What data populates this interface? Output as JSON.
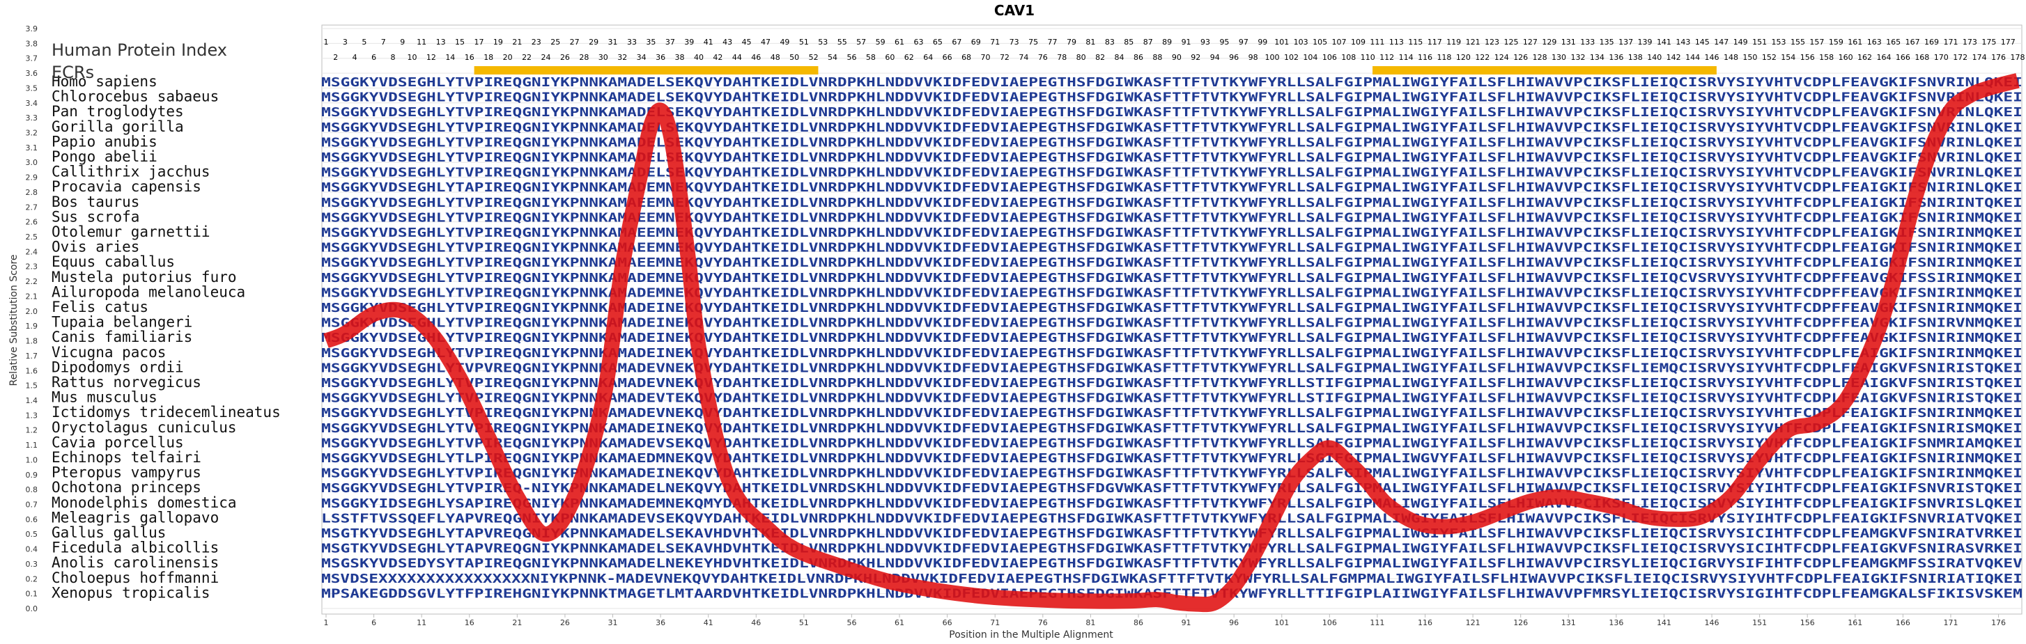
{
  "chart_data": {
    "type": "line",
    "title": "CAV1",
    "xlabel": "Position in the Multiple Alignment",
    "ylabel": "Relative Substitution Score",
    "ylim": [
      0.0,
      3.9
    ],
    "yticks": [
      "0.0",
      "0.1",
      "0.2",
      "0.3",
      "0.4",
      "0.5",
      "0.6",
      "0.7",
      "0.8",
      "0.9",
      "1.0",
      "1.1",
      "1.2",
      "1.3",
      "1.4",
      "1.5",
      "1.6",
      "1.7",
      "1.8",
      "1.9",
      "2.0",
      "2.1",
      "2.2",
      "2.3",
      "2.4",
      "2.5",
      "2.6",
      "2.7",
      "2.8",
      "2.9",
      "3.0",
      "3.1",
      "3.2",
      "3.3",
      "3.4",
      "3.5",
      "3.6",
      "3.7",
      "3.8",
      "3.9"
    ],
    "xlim": [
      1,
      178
    ],
    "xticks": [
      "1",
      "6",
      "11",
      "16",
      "21",
      "26",
      "31",
      "36",
      "41",
      "46",
      "51",
      "56",
      "61",
      "66",
      "71",
      "76",
      "81",
      "86",
      "91",
      "96",
      "101",
      "106",
      "111",
      "116",
      "121",
      "126",
      "131",
      "136",
      "141",
      "146",
      "151",
      "156",
      "161",
      "166",
      "171",
      "176"
    ],
    "grid": true,
    "labels": {
      "human_index": "Human Protein Index",
      "ecrs": "ECRs"
    },
    "human_index_odd": [
      "1",
      "3",
      "5",
      "7",
      "9",
      "11",
      "13",
      "15",
      "17",
      "19",
      "21",
      "23",
      "25",
      "27",
      "29",
      "31",
      "33",
      "35",
      "37",
      "39",
      "41",
      "43",
      "45",
      "47",
      "49",
      "51",
      "53",
      "55",
      "57",
      "59",
      "61",
      "63",
      "65",
      "67",
      "69",
      "71",
      "73",
      "75",
      "77",
      "79",
      "81",
      "83",
      "85",
      "87",
      "89",
      "91",
      "93",
      "95",
      "97",
      "99",
      "101",
      "103",
      "105",
      "107",
      "109",
      "111",
      "113",
      "115",
      "117",
      "119",
      "121",
      "123",
      "125",
      "127",
      "129",
      "131",
      "133",
      "135",
      "137",
      "139",
      "141",
      "143",
      "145",
      "147",
      "149",
      "151",
      "153",
      "155",
      "157",
      "159",
      "161",
      "163",
      "165",
      "167",
      "169",
      "171",
      "173",
      "175",
      "177"
    ],
    "human_index_even": [
      "2",
      "4",
      "6",
      "8",
      "10",
      "12",
      "14",
      "16",
      "18",
      "20",
      "22",
      "24",
      "26",
      "28",
      "30",
      "32",
      "34",
      "36",
      "38",
      "40",
      "42",
      "44",
      "46",
      "48",
      "50",
      "52",
      "54",
      "56",
      "58",
      "60",
      "62",
      "64",
      "66",
      "68",
      "70",
      "72",
      "74",
      "76",
      "78",
      "80",
      "82",
      "84",
      "86",
      "88",
      "90",
      "92",
      "94",
      "96",
      "98",
      "100",
      "102",
      "104",
      "106",
      "108",
      "110",
      "112",
      "114",
      "116",
      "118",
      "120",
      "122",
      "124",
      "126",
      "128",
      "130",
      "132",
      "134",
      "136",
      "138",
      "140",
      "142",
      "144",
      "146",
      "148",
      "150",
      "152",
      "154",
      "156",
      "158",
      "160",
      "162",
      "164",
      "166",
      "168",
      "170",
      "172",
      "174",
      "176",
      "178"
    ],
    "ecr_regions": [
      [
        17,
        52
      ],
      [
        111,
        146
      ]
    ],
    "species": [
      "Homo sapiens",
      "Chlorocebus sabaeus",
      "Pan troglodytes",
      "Gorilla gorilla",
      "Papio anubis",
      "Pongo abelii",
      "Callithrix jacchus",
      "Procavia capensis",
      "Bos taurus",
      "Sus scrofa",
      "Otolemur garnettii",
      "Ovis aries",
      "Equus caballus",
      "Mustela putorius furo",
      "Ailuropoda melanoleuca",
      "Felis catus",
      "Tupaia belangeri",
      "Canis familiaris",
      "Vicugna pacos",
      "Dipodomys ordii",
      "Rattus norvegicus",
      "Mus musculus",
      "Ictidomys tridecemlineatus",
      "Oryctolagus cuniculus",
      "Cavia porcellus",
      "Echinops telfairi",
      "Pteropus vampyrus",
      "Ochotona princeps",
      "Monodelphis domestica",
      "Meleagris gallopavo",
      "Gallus gallus",
      "Ficedula albicollis",
      "Anolis carolinensis",
      "Choloepus hoffmanni",
      "Xenopus tropicalis"
    ],
    "sequences": [
      "MSGGKYVDSEGHLYTVPIREQGNIYKPNNKAMADELSEKQVYDAHTKEIDLVNRDPKHLNDDVVKIDFEDVIAEPEGTHSFDGIWKASFTTFTVTKYWFYRLLSALFGIPMALIWGIYFAILSFLHIWAVVPCIKSFLIEIQCISRVYSIYVHTVCDPLFEAVGKIFSNVRINLQKEI",
      "MSGGKYVDSEGHLYTVPIREQGNIYKPNNKAMADELSEKQVYDAHTKEIDLVNRDPKHLNDDVVKIDFEDVIAEPEGTHSFDGIWKASFTTFTVTKYWFYRLLSALFGIPMALIWGIYFAILSFLHIWAVVPCIKSFLIEIQCISRVYSIYVHTVCDPLFEAVGKIFSNVRINLQKEI",
      "MSGGKYVDSEGHLYTVPIREQGNIYKPNNKAMADELSEKQVYDAHTKEIDLVNRDPKHLNDDVVKIDFEDVIAEPEGTHSFDGIWKASFTTFTVTKYWFYRLLSALFGIPMALIWGIYFAILSFLHIWAVVPCIKSFLIEIQCISRVYSIYVHTVCDPLFEAVGKIFSNVRINLQKEI",
      "MSGGKYVDSEGHLYTVPIREQGNIYKPNNKAMADELSEKQVYDAHTKEIDLVNRDPKHLNDDVVKIDFEDVIAEPEGTHSFDGIWKASFTTFTVTKYWFYRLLSALFGIPMALIWGIYFAILSFLHIWAVVPCIKSFLIEIQCISRVYSIYVHTVCDPLFEAVGKIFSNVRINLQKEI",
      "MSGGKYVDSEGHLYTVPIREQGNIYKPNNKAMADELSEKQVYDAHTKEIDLVNRDPKHLNDDVVKIDFEDVIAEPEGTHSFDGIWKASFTTFTVTKYWFYRLLSALFGIPMALIWGIYFAILSFLHIWAVVPCIKSFLIEIQCISRVYSIYVHTVCDPLFEAVGKIFSNVRINLQKEI",
      "MSGGKYVDSEGHLYTVPIREQGNIYKPNNKAMADELSEKQVYDAHTKEIDLVNRDPKHLNDDVVKIDFEDVIAEPEGTHSFDGIWKASFTTFTVTKYWFYRLLSALFGIPMALIWGIYFAILSFLHIWAVVPCIKSFLIEIQCISRVYSIYVHTVCDPLFEAVGKIFSNVRINLQKEI",
      "MSGGKYVDSEGHLYTVPIREQGNIYKPNNKAMADELSEKQVYDAHTKEIDLVNRDPKHLNDDVVKIDFEDVIAEPEGTHSFDGIWKASFTTFTVTKYWFYRLLSALFGIPMALIWGIYFAILSFLHIWAVVPCIKSFLIEIQCISRVYSIYVHTVCDPLFEAVGKIFSNVRINLQKEI",
      "MSGGKYVDSEGHLYTAPIREQGNIYKPNNKAMADEMNEKQVYDAHTKEIDLVNRDPKHLNDDVVKIDFEDVIAEPEGTHSFDGIWKASFTTFTVTKYWFYRLLSALFGIPMALIWGIYFAILSFLHIWAVVPCIKSFLIEIQCISRVYSIYVHTVCDPLFEAIGKIFSNIRINLQKEI",
      "MSGGKYVDSEGHLYTVPIREQGNIYKPNNKAMAEEMNEKQVYDAHTKEIDLVNRDPKHLNDDVVKIDFEDVIAEPEGTHSFDGIWKASFTTFTVTKYWFYRLLSALFGIPMALIWGIYFAILSFLHIWAVVPCIKSFLIEIQCISRVYSIYVHTFCDPLFEAIGKIFSNIRINTQKEI",
      "MSGGKYVDSEGHLYTVPIREQGNIYKPNNKAMAEEMNEKQVYDAHTKEIDLVNRDPKHLNDDVVKIDFEDVIAEPEGTHSFDGIWKASFTTFTVTKYWFYRLLSALFGIPMALIWGIYFAILSFLHIWAVVPCIKSFLIEIQCISRVYSIYVHTFCDPLFEAIGKIFSNIRINMQKEI",
      "MSGGKYVDSEGHLYTVPIREQGNIYKPNNKAMAEEMNEKQVYDAHTKEIDLVNRDPKHLNDDVVKIDFEDVIAEPEGTHSFDGIWKASFTTFTVTKYWFYRLLSALFGIPMALIWGIYFAILSFLHIWAVVPCIKSFLIEIQCISRVYSIYVHTFCDPLFEAIGKIFSNIRINMQKEI",
      "MSGGKYVDSEGHLYTVPIREQGNIYKPNNKAMAEEMNEKQVYDAHTKEIDLVNRDPKHLNDDVVKIDFEDVIAEPEGTHSFDGIWKASFTTFTVTKYWFYRLLSALFGIPMALIWGIYFAILSFLHIWAVVPCIKSFLIEIQCISRVYSIYVHTFCDPLFEAIGKIFSNIRINMQKEI",
      "MSGGKYVDSEGHLYTVPIREQGNIYKPNNKAMAEEMNEKQVYDAHTKEIDLVNRDPKHLNDDVVKIDFEDVIAEPEGTHSFDGIWKASFTTFTVTKYWFYRLLSALFGIPMALIWGIYFAILSFLHIWAVVPCIKSFLIEIQCISRVYSIYVHTFCDPLFEAIGKIFSNIRINMQKEI",
      "MSGGKYVDSEGHLYTVPIREQGNIYKPNNKAMADEMNEKQVYDAHTKEIDLVNRDPKHLNDDVVKIDFEDVIAEPEGTHSFDGIWKASFTTFTVTKYWFYRLLSALFGIPMALIWGIYFAILSFLHIWAVVPCIKSFLIEIQCVSRVYSIYVHTFCDPFFEAVGKIFSSIRINMQKEI",
      "MSGGKYVDSEGHLYTVPIREQGNIYKPNNKAMADEMNEKQVYDAHTKEIDLVNRDPKHLNDDVVKIDFEDVIAEPEGTHSFDGIWKASFTTFTVTKYWFYRLLSALFGIPMALIWGIYFAILSFLHIWAVVPCIKSFLIEIQCISRVYSIYVHTFCDPFFEAVGKIFSNIRINMQKEI",
      "MSGGKYVDSEGHLYTVPIREQGNIYKPNNKAMADEINEKQVYDAHTKEIDLVNRDPKHLNDDVVKIDFEDVIAEPEGTHSFDGIWKASFTTFTVTKYWFYRLLSALFGIPMALIWGIYFAILSFLHIWAVVPCIKSFLIEIQCISRVYSIYVHTFCDPFFEAVGKIFSNIRINMQKEI",
      "MSGGKYVDSEGHLYTVPIREQGNIYKPNNKAMADEINEKQVYDAHTKEIDLVNRDPKHLNDDVVKIDFEDVIAEPEGTHSFDGIWKASFTTFTVTKYWFYRLLSALFGIPMALIWGIYFAILSFLHIWAVVPCIKSFLIEIQCISRVYSIYVHTFCDPFFEAVGKIFSNIRVNMQKEI",
      "MSGGKYVDSEGHLYTVPIREQGNIYKPNNKAMADEINEKQVYDAHTKEIDLVNRDPKHLNDDVVKIDFEDVIAEPEGTHSFDGIWKASFTTFTVTKYWFYRLLSALFGIPMALIWGIYFAILSFLHIWAVVPCIKSFLIEIQCISRVYSIYVHTFCDPFFEAVGKIFSNIRINMQKEI",
      "MSGGKYVDSEGHLYTVPIREQGNIYKPNNKAMADEINEKQVYDAHTKEIDLVNRDPKHLNDDVVKIDFEDVIAEPEGTHSFDGIWKASFTTFTVTKYWFYRLLSALFGIPMALIWGIYFAILSFLHIWAVVPCIKSFLIEIQCISRVYSIYVHTFCDPLFEAIGKIFSNIRINMQKEI",
      "MSGGKYVDSEGHLYTVPVREQGNIYKPNNKAMADEVNEKQVYDAHTKEIDLVNRDPKHLNDDVVKIDFEDVIAEPEGTHSFDGIWKASFTTFTVTKYWFYRLLSALFGIPMALIWGIYFAILSFLHIWAVVPCIKSFLIEMQCISRVYSIYVHTFCDPLFEAIGKVFSNIRISTQKEI",
      "MSGGKYVDSEGHLYTVPIREQGNIYKPNNKAMADEVNEKQVYDAHTKEIDLVNRDPKHLNDDVVKIDFEDVIAEPEGTHSFDGIWKASFTTFTVTKYWFYRLLSTIFGIPMALIWGIYFAILSFLHIWAVVPCIKSFLIEIQCISRVYSIYVHTFCDPLFEAIGKVFSNIRISTQKEI",
      "MSGGKYVDSEGHLYTVPIREQGNIYKPNNKAMADEVTEKQVYDAHTKEIDLVNRDPKHLNDDVVKIDFEDVIAEPEGTHSFDGIWKASFTTFTVTKYWFYRLLSTIFGIPMALIWGIYFAILSFLHIWAVVPCIKSFLIEIQCISRVYSIYVHTFCDPLFEAIGKVFSNIRISTQKEI",
      "MSGGKYVDSEGHLYTVPIREQGNIYKPNNKAMADEVNEKQVYDAHTKEIDLVNRDPKHLNDDVVKIDFEDVIAEPEGTHSFDGIWKASFTTFTVTKYWFYRLLSALFGIPMALIWGIYFAILSFLHIWAVVPCIKSFLIEIQCISRVYSIYVHTFCDPLFEAIGKIFSNIRINMQKEI",
      "MSGGKYVDSEGHLYTVPIREQGNIYKPNNKAMADEINEKQVYDAHTKEIDLVNRDPKHLNDDVVKIDFEDVIAEPEGTHSFDGIWKASFTTFTVTKYWFYRLLSALFGIPMALIWGIYFAILSFLHIWAVVPCIKSFLIEIQCISRVYSIYVHTFCDPLFEAIGKIFSNIRISMQKEI",
      "MSGGKYVDSEGHLYTVPIREQGNIYKPNNKAMADEVSEKQVYDAHTKEIDLVNRDPKHLNDDVVKIDFEDVIAEPEGTHSFDGIWKASFTTFTVTKYWFYRLLSALFGIPMALIWGIYFAILSFLHIWAVVPCIKSFLIEIQCISRVYSIYVHTFCDPLFEAIGKIFSNMRIAMQKEI",
      "MSGGKYVDSEGHLYTLPIREQGNIYKPNNKAMAEDMNEKQVYDAHTKEIDLVNRDPKHLNDDVVKIDFEDVIAEPEGTHSFDGIWKASFTTFTVTKYWFYRLLSGIFGIPMALIWGVYFAILSFLHIWAVVPCIKSFLIEIQCISRVYSIYVHTFCDPLFEAIGKIFSNIRINMQKEI",
      "MSGGKYVDSEGHLYTVPIREQGNIYKPNNKAMADEINEKQVYDAHTKEIDLVNRDPKHLNDDVVKIDFEDVIAEPEGTHSFDGIWKASFTTFTVTKYWFYRLLSALFGIPMALIWGIYFAILSFLHIWAVVPCIKSFLIEIQCISRVYSIYVHTFCDPLFEAIGKIFSNIRINMQKEI",
      "MSGGKYVDSEGHLYTVPIREQ-NIYKPNNKAMADELNEKQVYDAHTKEIDLVNRDSKHLNDDVVKIDFEDVIAEPEGTHSFDGVWKASFTTFTVTKYWFYRLLSALFGIPMALIWGIYFAILSFLHIWAVVPCIKSFLIEIQCISRVYSIYIHTFCDPLFEAIGKIFSNVRISTQKEI",
      "MSGGKYIDSEGHLYSAPIREQGNIYKPNNKAMADEMNEKQMYDAHTKEIDLVNRDPKHLNDDVVKIDFEDVIAEPEGTHSFDGIWKASFTTFTVTKYWFYRLLSALFGIPMALIWGIYFAILSFLHIWAVVPCIKSFLIEIQCISRVYSIYIHTFCDPLFEAIGKIFSNVRISLQKEI",
      "LSSTFTVSSQEFLYAPVREQGNIYKPNNKAMADEVSEKQVYDAHTKEIDLVNRDPKHLNDDVVKIDFEDVIAEPEGTHSFDGIWKASFTTFTVTKYWFYRLLSALFGIPMALIWGIYFAILSFLHIWAVVPCIKSFLIEIQCISRVYSIYIHTFCDPLFEAIGKIFSNVRIATVQKEI",
      "MSGTKYVDSEGHLYTAPVREQGNIYKPNNKAMADELSEKAVHDVHTKEIDLVNRDPKHLNDDVVKIDFEDVIAEPEGTHSFDGIWKASFTTFTVTKYWFYRLLSALFGIPMALIWGIYFAILSFLHIWAVVPCIKSFLIEIQCISRVYSICIHTFCDPLFEAMGKVFSNIRATVRKEI",
      "MSGTKYVDSEGHLYTAPVREQGNIYKPNNKAMADELSEKAVHDVHTKEIDLVNRDPKHLNDDVVKIDFEDVIAEPEGTHSFDGIWKASFTTFTVTKYWFYRLLSALFGIPMALIWGIYFAILSFLHIWAVVPCIKSFLIEIQCISRVYSICIHTFCDPLFEAIGKVFSNIRASVRKEI",
      "MSGSKYVDSEDYSYTAPIREQGNIYKPNNKAMADELNEKEYHDVHTKEIDLVNRDPKHLNDDVVKIDFEDVIAEPEGTHSFDGIWKASFTTFTVTKYWFYRLLSALFGIPMALIWGIYFAILSFLHIWAVVPCIRSYLIEIQCIGRVYSIFIHTFCDPLFEAMGKMFSSIRATVQKEV",
      "MSVDSEXXXXXXXXXXXXXXXXNIYKPNNK-MADEVNEKQVYDAHTKEIDLVNRDPKHLNDDVVKIDFEDVIAEPEGTHSFDGIWKASFTTFTVTKYWFYRLLSALFGMPMALIWGIYFAILSFLHIWAVVPCIKSFLIEIQCISRVYSIYVHTFCDPLFEAIGKIFSNIRIATIQKEI",
      "MPSAKEGDDSGVLYTFPIREHGNIYKPNNKTMAGETLMTAARDVHTKEIDLVNRDPKHLNDDVVKIDFEDVIAEPEGTHSFDGIWKASFTTFTVTKYWFYRLLTTIFGIPLAIIWGIYFAILSFLHIWAVVPFMRSYLIEIQCISRVYSIGIHTFCDPLFEAMGKALSFIKISVSKEM"
    ],
    "series": [
      {
        "x": [
          1,
          3,
          6,
          9,
          12,
          15,
          18,
          21,
          24,
          27,
          30,
          32,
          34,
          35,
          36,
          37,
          38,
          39,
          40,
          42,
          44,
          47,
          50,
          55,
          60,
          65,
          70,
          75,
          80,
          85,
          88,
          90,
          92,
          94,
          96,
          98,
          100,
          102,
          104,
          106,
          108,
          110,
          112,
          115,
          118,
          121,
          124,
          127,
          130,
          133,
          136,
          139,
          142,
          145,
          148,
          151,
          154,
          157,
          160,
          163,
          165,
          167,
          169,
          171,
          173,
          175,
          178
        ],
        "values": [
          1.8,
          1.85,
          1.98,
          2.0,
          1.85,
          1.55,
          1.15,
          0.75,
          0.5,
          0.75,
          1.4,
          2.3,
          2.95,
          3.25,
          3.35,
          3.2,
          2.8,
          2.3,
          1.75,
          1.1,
          0.75,
          0.55,
          0.4,
          0.28,
          0.18,
          0.12,
          0.08,
          0.06,
          0.05,
          0.05,
          0.06,
          0.04,
          0.03,
          0.04,
          0.15,
          0.35,
          0.6,
          0.85,
          1.0,
          1.08,
          0.98,
          0.85,
          0.7,
          0.58,
          0.55,
          0.58,
          0.65,
          0.72,
          0.75,
          0.72,
          0.68,
          0.62,
          0.6,
          0.62,
          0.75,
          1.0,
          1.2,
          1.25,
          1.4,
          1.8,
          2.2,
          2.7,
          3.1,
          3.35,
          3.45,
          3.5,
          3.55
        ]
      }
    ]
  }
}
